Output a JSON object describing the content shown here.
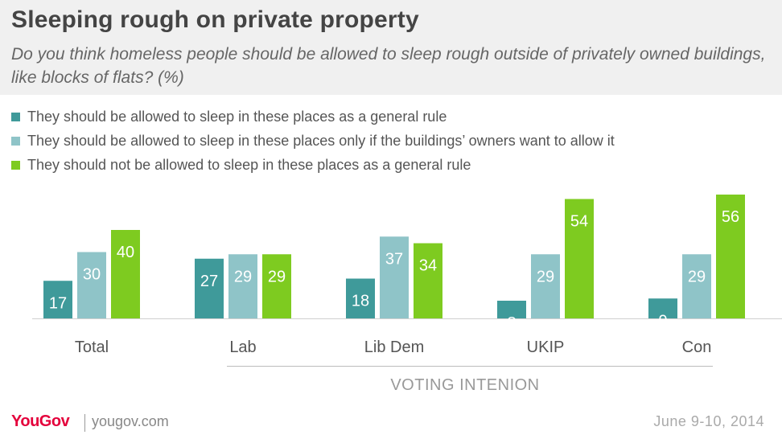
{
  "title": "Sleeping rough on private property",
  "subtitle": "Do you think homeless people should be allowed to sleep rough outside of privately owned buildings, like blocks of flats? (%)",
  "footer": {
    "logo": "YouGov",
    "url": "yougov.com",
    "date": "June 9-10, 2014"
  },
  "colors": {
    "series1": "#3f9a9a",
    "series2": "#8fc4c8",
    "series3": "#7ecb20"
  },
  "chart_data": {
    "type": "bar",
    "title": "Sleeping rough on private property",
    "categories": [
      "Total",
      "Lab",
      "Lib Dem",
      "UKIP",
      "Con"
    ],
    "group_label": "VOTING INTENION",
    "series": [
      {
        "name": "They should be allowed to sleep in these places as a general rule",
        "values": [
          17,
          27,
          18,
          8,
          9
        ]
      },
      {
        "name": "They should be allowed to sleep in these places only if the buildings’ owners want to allow it",
        "values": [
          30,
          29,
          37,
          29,
          29
        ]
      },
      {
        "name": "They should not be allowed to sleep in these places as a general rule",
        "values": [
          40,
          29,
          34,
          54,
          56
        ]
      }
    ],
    "ylim": [
      0,
      60
    ],
    "grid": false,
    "legend": "top-left"
  }
}
